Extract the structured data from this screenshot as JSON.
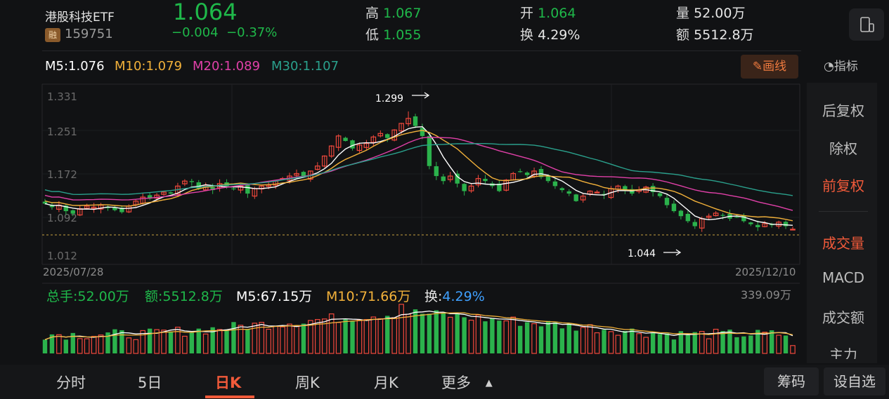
{
  "header": {
    "name": "港股科技ETF",
    "tag": "融",
    "code": "159751",
    "price": "1.064",
    "change": "−0.004",
    "change_pct": "−0.37%",
    "high_label": "高",
    "high": "1.067",
    "low_label": "低",
    "low": "1.055",
    "open_label": "开",
    "open": "1.064",
    "turnover_label": "换",
    "turnover": "4.29%",
    "volume_label": "量",
    "volume": "52.00万",
    "amount_label": "额",
    "amount": "5512.8万"
  },
  "ma_legend": {
    "m5": "M5:1.076",
    "m10": "M10:1.079",
    "m20": "M20:1.089",
    "m30": "M30:1.107"
  },
  "toolbar": {
    "draw": "画线",
    "indicator": "指标"
  },
  "side_menu": [
    "后复权",
    "除权",
    "前复权",
    "成交量",
    "MACD",
    "成交额",
    "主力"
  ],
  "chart": {
    "y_ticks": [
      "1.331",
      "1.251",
      "1.172",
      "1.092",
      "1.012"
    ],
    "x_start": "2025/07/28",
    "x_end": "2025/12/10",
    "max_annot": "1.299",
    "min_annot": "1.044"
  },
  "volume_info": {
    "total": "总手:52.00万",
    "amount": "额:5512.8万",
    "m5": "M5:67.15万",
    "m10": "M10:71.66万",
    "turn_label": "换:",
    "turn_value": "4.29%",
    "max": "339.09万"
  },
  "tabs": [
    "分时",
    "5日",
    "日K",
    "周K",
    "月K",
    "更多"
  ],
  "buttons": {
    "chips": "筹码",
    "add_fav": "设自选"
  },
  "colors": {
    "up": "#f0483c",
    "down": "#2bb24c",
    "m5": "#ffffff",
    "m10": "#f2b13a",
    "m20": "#e040a8",
    "m30": "#2aa08c"
  },
  "chart_data": {
    "type": "candlestick",
    "date_range": [
      "2025/07/28",
      "2025/12/10"
    ],
    "ylim": [
      1.012,
      1.331
    ],
    "max": 1.299,
    "min": 1.044,
    "last": {
      "open": 1.064,
      "high": 1.067,
      "low": 1.055,
      "close": 1.064
    },
    "ma": {
      "M5": 1.076,
      "M10": 1.079,
      "M20": 1.089,
      "M30": 1.107
    },
    "close_series": [
      1.115,
      1.108,
      1.112,
      1.1,
      1.095,
      1.105,
      1.11,
      1.108,
      1.112,
      1.106,
      1.102,
      1.098,
      1.11,
      1.12,
      1.128,
      1.125,
      1.132,
      1.138,
      1.135,
      1.15,
      1.16,
      1.158,
      1.145,
      1.15,
      1.142,
      1.155,
      1.15,
      1.145,
      1.15,
      1.135,
      1.145,
      1.15,
      1.152,
      1.16,
      1.165,
      1.17,
      1.175,
      1.168,
      1.18,
      1.19,
      1.21,
      1.23,
      1.25,
      1.24,
      1.225,
      1.232,
      1.235,
      1.248,
      1.255,
      1.246,
      1.262,
      1.275,
      1.285,
      1.27,
      1.25,
      1.19,
      1.17,
      1.16,
      1.17,
      1.155,
      1.14,
      1.15,
      1.165,
      1.16,
      1.15,
      1.14,
      1.162,
      1.175,
      1.178,
      1.172,
      1.18,
      1.168,
      1.16,
      1.15,
      1.142,
      1.135,
      1.12,
      1.13,
      1.14,
      1.138,
      1.132,
      1.145,
      1.15,
      1.14,
      1.135,
      1.142,
      1.148,
      1.138,
      1.13,
      1.112,
      1.1,
      1.09,
      1.08,
      1.07,
      1.085,
      1.09,
      1.096,
      1.092,
      1.085,
      1.088,
      1.08,
      1.074,
      1.068,
      1.075,
      1.072,
      1.078,
      1.07,
      1.064
    ],
    "volume_max_wan": 339.09
  }
}
